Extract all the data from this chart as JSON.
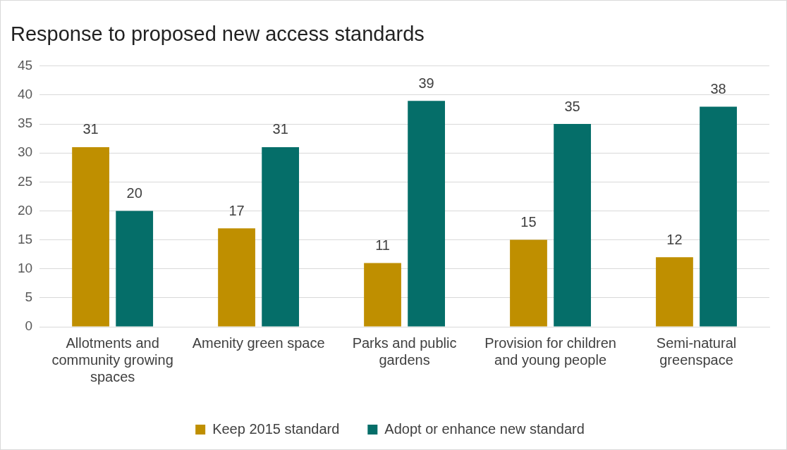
{
  "chart_data": {
    "type": "bar",
    "title": "Response to proposed new access standards",
    "categories": [
      "Allotments and community growing spaces",
      "Amenity green space",
      "Parks and public gardens",
      "Provision for children and young people",
      "Semi-natural greenspace"
    ],
    "series": [
      {
        "name": "Keep 2015 standard",
        "color": "#bf8f00",
        "values": [
          31,
          17,
          11,
          15,
          12
        ]
      },
      {
        "name": "Adopt or enhance new standard",
        "color": "#056e69",
        "values": [
          20,
          31,
          39,
          35,
          38
        ]
      }
    ],
    "ylim": [
      0,
      45
    ],
    "yticks": [
      0,
      5,
      10,
      15,
      20,
      25,
      30,
      35,
      40,
      45
    ],
    "grid": "y",
    "legend": "bottom",
    "data_labels": true
  }
}
